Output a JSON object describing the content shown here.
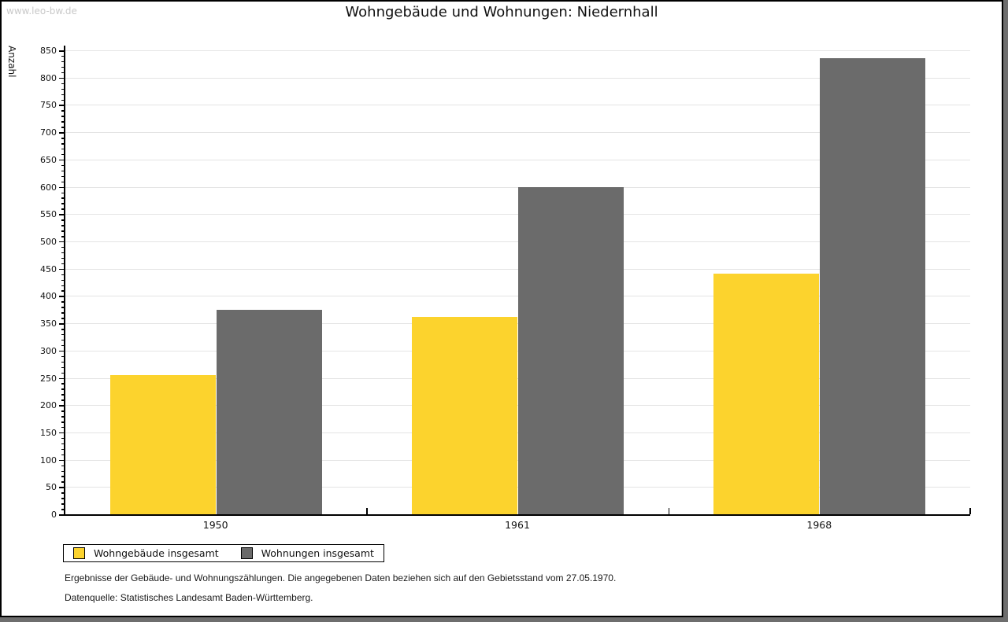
{
  "watermark": "www.leo-bw.de",
  "title": "Wohngebäude und Wohnungen: Niedernhall",
  "chart_data": {
    "type": "bar",
    "title": "Wohngebäude und Wohnungen: Niedernhall",
    "categories": [
      "1950",
      "1961",
      "1968"
    ],
    "series": [
      {
        "name": "Wohngebäude insgesamt",
        "color": "#fcd32d",
        "values": [
          255,
          362,
          441
        ]
      },
      {
        "name": "Wohnungen insgesamt",
        "color": "#6b6b6b",
        "values": [
          375,
          600,
          835
        ]
      }
    ],
    "xlabel": "",
    "ylabel": "Anzahl",
    "ylim": [
      0,
      850
    ],
    "ytick_step": 50,
    "yminor_step": 10,
    "grid": true,
    "grid_color": "#e4e4e4",
    "legend_position": "bottom-left"
  },
  "footnotes": [
    "Ergebnisse der Gebäude- und Wohnungszählungen. Die angegebenen Daten beziehen sich auf den Gebietsstand vom 27.05.1970.",
    "Datenquelle: Statistisches Landesamt Baden-Württemberg."
  ]
}
